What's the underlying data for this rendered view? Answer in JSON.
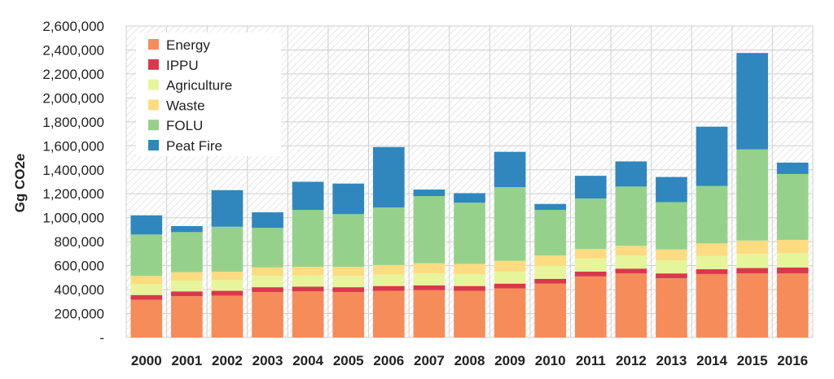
{
  "chart_data": {
    "type": "bar",
    "stacked": true,
    "title": "",
    "xlabel": "",
    "ylabel": "Gg CO2e",
    "ylim": [
      0,
      2600000
    ],
    "yticks": [
      0,
      200000,
      400000,
      600000,
      800000,
      1000000,
      1200000,
      1400000,
      1600000,
      1800000,
      2000000,
      2200000,
      2400000,
      2600000
    ],
    "ytick_labels": [
      "-",
      "200,000",
      "400,000",
      "600,000",
      "800,000",
      "1,000,000",
      "1,200,000",
      "1,400,000",
      "1,600,000",
      "1,800,000",
      "2,000,000",
      "2,200,000",
      "2,400,000",
      "2,600,000"
    ],
    "grid": true,
    "legend_position": "top-left",
    "categories": [
      "2000",
      "2001",
      "2002",
      "2003",
      "2004",
      "2005",
      "2006",
      "2007",
      "2008",
      "2009",
      "2010",
      "2011",
      "2012",
      "2013",
      "2014",
      "2015",
      "2016"
    ],
    "series": [
      {
        "name": "Energy",
        "color": "#F58C5A",
        "values": [
          315000,
          345000,
          350000,
          380000,
          385000,
          380000,
          390000,
          395000,
          390000,
          410000,
          450000,
          510000,
          535000,
          495000,
          530000,
          535000,
          535000
        ]
      },
      {
        "name": "IPPU",
        "color": "#D9384A",
        "values": [
          40000,
          40000,
          40000,
          40000,
          40000,
          40000,
          40000,
          40000,
          40000,
          40000,
          40000,
          40000,
          40000,
          40000,
          40000,
          45000,
          50000
        ]
      },
      {
        "name": "Agriculture",
        "color": "#E6F59A",
        "values": [
          90000,
          90000,
          90000,
          95000,
          95000,
          95000,
          95000,
          100000,
          100000,
          100000,
          110000,
          110000,
          110000,
          110000,
          110000,
          120000,
          120000
        ]
      },
      {
        "name": "Waste",
        "color": "#FDDB80",
        "values": [
          70000,
          70000,
          70000,
          70000,
          70000,
          75000,
          80000,
          85000,
          85000,
          90000,
          85000,
          80000,
          80000,
          90000,
          105000,
          110000,
          110000
        ]
      },
      {
        "name": "FOLU",
        "color": "#96D18C",
        "values": [
          345000,
          335000,
          375000,
          330000,
          475000,
          440000,
          480000,
          560000,
          510000,
          615000,
          380000,
          420000,
          495000,
          395000,
          480000,
          760000,
          550000
        ]
      },
      {
        "name": "Peat Fire",
        "color": "#2F87BE",
        "values": [
          160000,
          50000,
          305000,
          130000,
          235000,
          255000,
          505000,
          55000,
          80000,
          295000,
          50000,
          190000,
          210000,
          210000,
          495000,
          805000,
          95000
        ]
      }
    ]
  }
}
